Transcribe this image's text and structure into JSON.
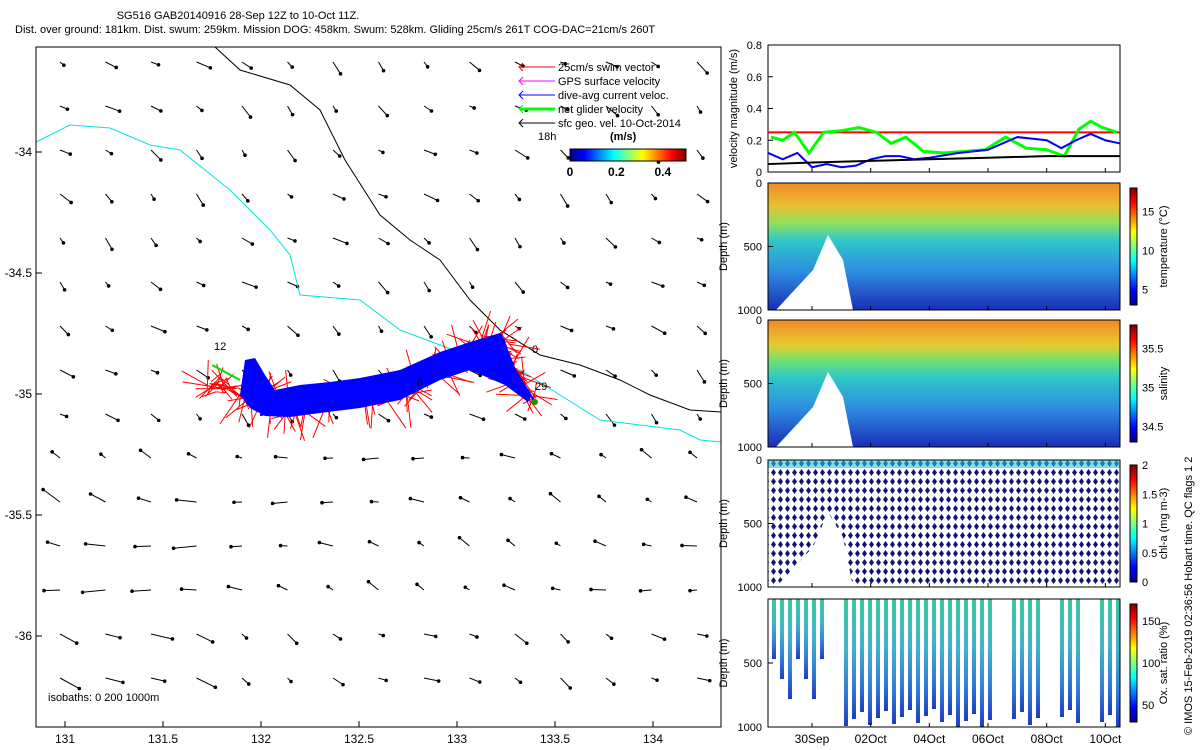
{
  "header": {
    "title": "SG516 GAB20140916 28-Sep 12Z to 10-Oct 11Z.",
    "subtitle": "Dist. over ground: 181km. Dist. swum: 259km. Mission DOG: 458km. Swum: 528km. Gliding 25cm/s 261T COG-DAC=21cm/s 260T"
  },
  "credit": "© IMOS 15-Feb-2019 02:36:56 Hobart time. QC flags 1  2",
  "map": {
    "legend": [
      {
        "label": "25cm/s swim vector",
        "color": "#ff0000"
      },
      {
        "label": "GPS surface velocity",
        "color": "#ff00ff"
      },
      {
        "label": "dive-avg current veloc.",
        "color": "#0000ff"
      },
      {
        "label": "net glider velocity",
        "color": "#00ff00"
      },
      {
        "label": "sfc geo. vel. 10-Oct-2014",
        "color": "#000000"
      }
    ],
    "legend_extra": "18h",
    "colorbar": {
      "unit": "(m/s)",
      "ticks": [
        "0",
        "0.2",
        "0.4"
      ],
      "range": [
        0,
        0.5
      ]
    },
    "isobaths_label": "isobaths: 0   200  1000m",
    "annotations": [
      "12",
      "0",
      "29",
      "6"
    ],
    "xticks": [
      "131",
      "131.5",
      "132",
      "132.5",
      "133",
      "133.5",
      "134"
    ],
    "yticks": [
      "-34",
      "-34.5",
      "-35",
      "-35.5",
      "-36"
    ]
  },
  "chart_data": [
    {
      "type": "line",
      "title": "",
      "xlabel": "",
      "ylabel": "velocity magnitude (m/s)",
      "ylim": [
        0,
        0.8
      ],
      "yticks": [
        "0",
        "0.2",
        "0.4",
        "0.6",
        "0.8"
      ],
      "xlim": [
        28.5,
        40.5
      ],
      "series": [
        {
          "name": "25cm/s swim vector",
          "color": "#ff0000",
          "x": [
            28.5,
            40.5
          ],
          "y": [
            0.25,
            0.25
          ]
        },
        {
          "name": "net glider velocity",
          "color": "#00ff00",
          "x": [
            28.6,
            29.0,
            29.4,
            29.9,
            30.4,
            31.0,
            31.6,
            32.2,
            32.7,
            33.2,
            33.8,
            34.5,
            35.2,
            35.9,
            36.6,
            37.3,
            38.0,
            38.6,
            39.1,
            39.5,
            39.9,
            40.4
          ],
          "y": [
            0.22,
            0.2,
            0.25,
            0.12,
            0.25,
            0.26,
            0.28,
            0.25,
            0.18,
            0.22,
            0.13,
            0.12,
            0.13,
            0.14,
            0.22,
            0.15,
            0.14,
            0.1,
            0.27,
            0.32,
            0.28,
            0.25
          ]
        },
        {
          "name": "dive-avg current veloc.",
          "color": "#0000ff",
          "x": [
            28.5,
            29.0,
            29.5,
            30.0,
            30.5,
            31.0,
            31.5,
            32.0,
            32.5,
            33.0,
            33.5,
            34.0,
            35.0,
            36.0,
            37.0,
            38.0,
            38.5,
            39.0,
            39.5,
            40.0,
            40.5
          ],
          "y": [
            0.12,
            0.08,
            0.12,
            0.03,
            0.05,
            0.03,
            0.04,
            0.08,
            0.1,
            0.1,
            0.08,
            0.09,
            0.12,
            0.14,
            0.22,
            0.2,
            0.15,
            0.2,
            0.24,
            0.2,
            0.18
          ]
        },
        {
          "name": "sfc geo. vel. 10-Oct-2014",
          "color": "#000000",
          "x": [
            28.5,
            30.0,
            32.0,
            34.0,
            36.0,
            38.0,
            40.5
          ],
          "y": [
            0.05,
            0.06,
            0.07,
            0.08,
            0.09,
            0.1,
            0.1
          ]
        }
      ]
    },
    {
      "type": "heatmap",
      "title": "",
      "xlabel": "",
      "ylabel": "Depth (m)",
      "ylim": [
        1000,
        0
      ],
      "yticks": [
        "0",
        "500",
        "1000"
      ],
      "colorbar_label": "temperature (°C)",
      "colorbar_ticks": [
        "5",
        "10",
        "15"
      ],
      "crange": [
        3,
        18
      ]
    },
    {
      "type": "heatmap",
      "title": "",
      "xlabel": "",
      "ylabel": "Depth (m)",
      "ylim": [
        1000,
        0
      ],
      "yticks": [
        "0",
        "500",
        "1000"
      ],
      "colorbar_label": "salinity",
      "colorbar_ticks": [
        "34.5",
        "35",
        "35.5"
      ],
      "crange": [
        34.3,
        35.8
      ]
    },
    {
      "type": "heatmap",
      "title": "",
      "xlabel": "",
      "ylabel": "Depth (m)",
      "ylim": [
        1000,
        0
      ],
      "yticks": [
        "0",
        "500",
        "1000"
      ],
      "colorbar_label": "chl-a (mg m-3)",
      "colorbar_ticks": [
        "0",
        "0.5",
        "1",
        "1.5",
        "2"
      ],
      "crange": [
        0,
        2
      ]
    },
    {
      "type": "heatmap",
      "title": "",
      "xlabel": "",
      "ylabel": "Depth (m)",
      "ylim": [
        1000,
        0
      ],
      "yticks": [
        "500",
        "1000"
      ],
      "colorbar_label": "Ox. sat. ratio (%)",
      "colorbar_ticks": [
        "50",
        "100",
        "150"
      ],
      "crange": [
        30,
        170
      ],
      "xticks": [
        "30Sep",
        "02Oct",
        "04Oct",
        "06Oct",
        "08Oct",
        "10Oct"
      ]
    }
  ]
}
